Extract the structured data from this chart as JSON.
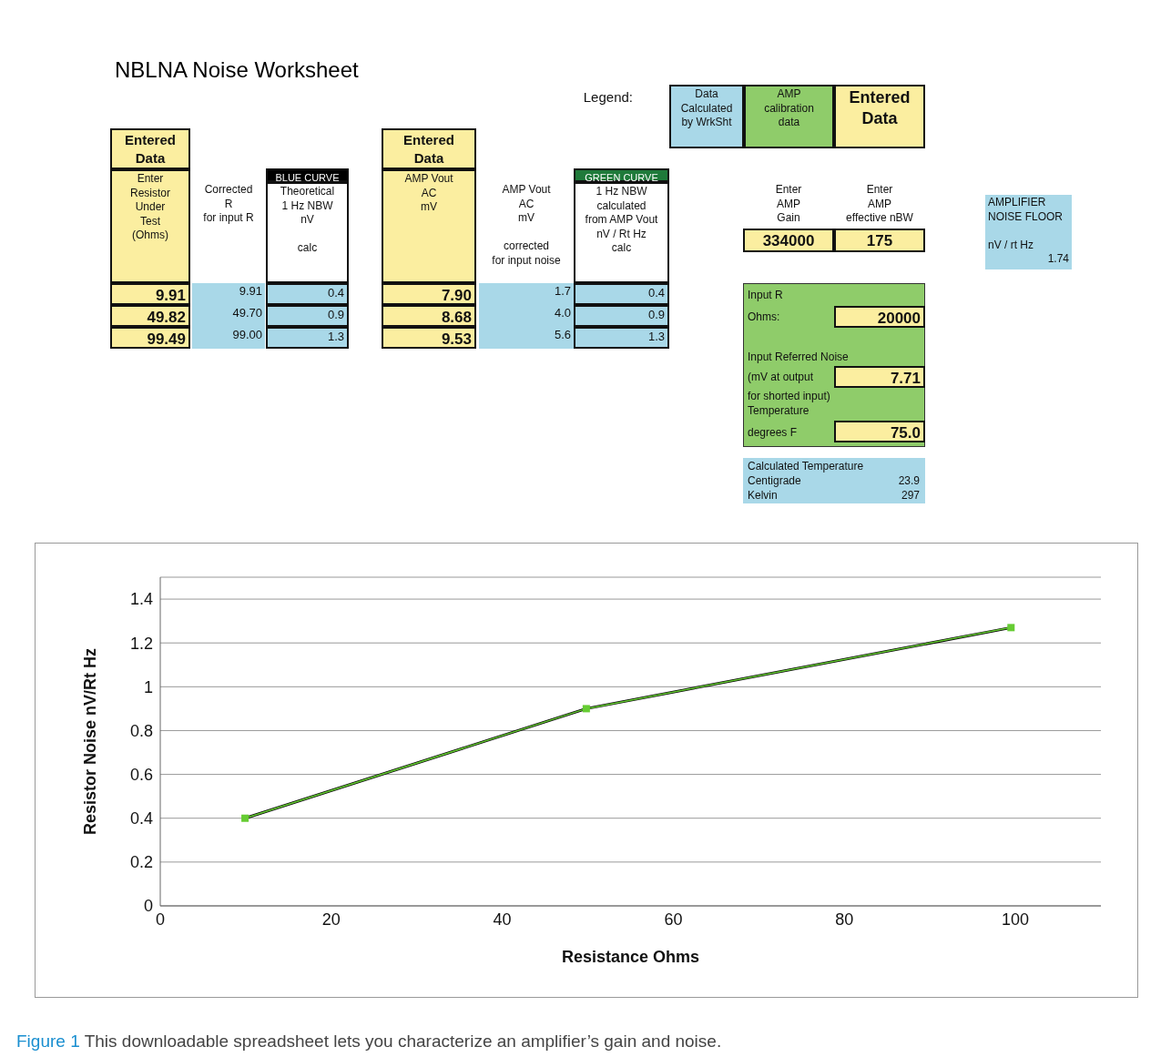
{
  "chart_data": [
    {
      "type": "other",
      "title": "NBLNA Noise Worksheet",
      "annotations": [
        "Legend:",
        "Data\nCalculated\nby WrkSht",
        "AMP\ncalibration\ndata",
        "Entered\nData",
        "Entered\nData",
        "Enter\nResistor\nUnder\nTest\n(Ohms)",
        "Corrected\nR\nfor input R",
        "BLUE CURVE",
        "Theoretical\n1 Hz NBW\nnV\n\ncalc",
        "9.91",
        "49.82",
        "99.49",
        "9.91",
        "49.70",
        "99.00",
        "0.4",
        "0.9",
        "1.3",
        "Entered\nData",
        "AMP Vout\nAC\nmV",
        "AMP Vout\nAC\nmV\n\ncorrected\nfor input noise",
        "GREEN CURVE",
        "1 Hz NBW\ncalculated\nfrom AMP Vout\nnV / Rt Hz\ncalc",
        "7.90",
        "8.68",
        "9.53",
        "1.7",
        "4.0",
        "5.6",
        "0.4",
        "0.9",
        "1.3",
        "Enter\nAMP\nGain",
        "Enter\nAMP\neffective nBW",
        "334000",
        "175",
        "AMPLIFIER\nNOISE FLOOR\n\nnV / rt Hz",
        "1.74",
        "Input R",
        "Ohms:",
        "20000",
        "Input Referred Noise",
        "(mV at output",
        "7.71",
        "for shorted input)\nTemperature",
        "degrees F",
        "75.0",
        "Calculated Temperature",
        "Centigrade",
        "23.9",
        "Kelvin",
        "297"
      ]
    },
    {
      "type": "line",
      "xlabel": "Resistance Ohms",
      "ylabel": "Resistor Noise nV/Rt Hz",
      "xlim": [
        0,
        110
      ],
      "xticks": [
        0,
        20,
        40,
        60,
        80,
        100
      ],
      "ylim": [
        0,
        1.5
      ],
      "yticks": [
        0,
        0.2,
        0.4,
        0.6,
        0.8,
        1,
        1.2,
        1.4
      ],
      "grid": "y",
      "marker": "square",
      "series": [
        {
          "color": "#000000",
          "marker": "none",
          "x": [
            9.91,
            49.82,
            99.49
          ],
          "values": [
            0.4,
            0.9,
            1.27
          ]
        },
        {
          "color": "#66cc33",
          "x": [
            9.91,
            49.82,
            99.49
          ],
          "values": [
            0.4,
            0.9,
            1.27
          ]
        }
      ],
      "annotations": [
        "Figure 1",
        "This downloadable spreadsheet lets you characterize an amplifier’s gain and noise."
      ]
    }
  ]
}
